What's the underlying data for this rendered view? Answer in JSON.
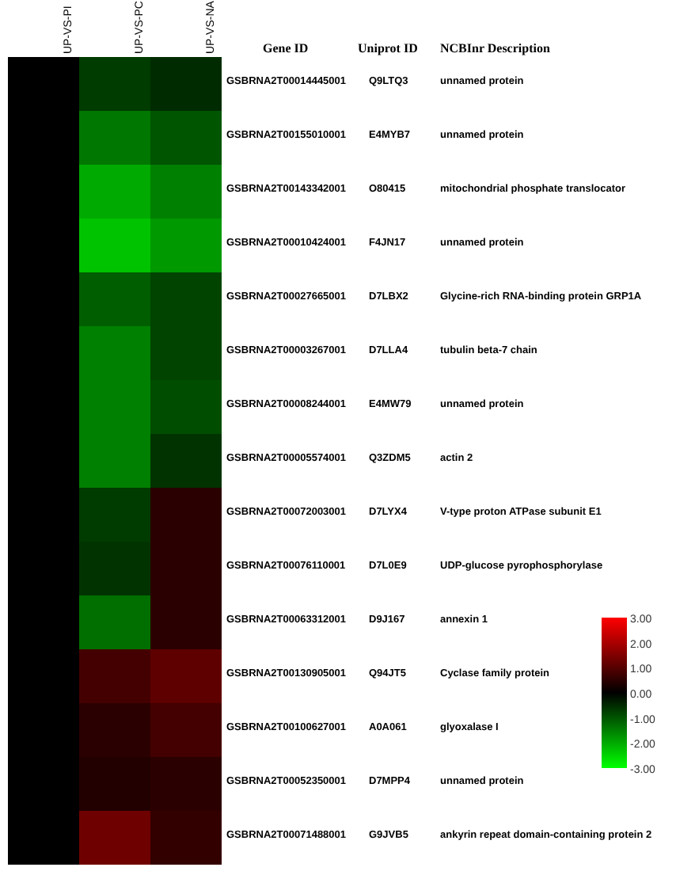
{
  "chart_data": {
    "type": "heatmap",
    "categories": [
      "UP-VS-PI",
      "UP-VS-PC",
      "UP-VS-NA"
    ],
    "y_categories": [
      "GSBRNA2T00014445001",
      "GSBRNA2T00155010001",
      "GSBRNA2T00143342001",
      "GSBRNA2T00010424001",
      "GSBRNA2T00027665001",
      "GSBRNA2T00003267001",
      "GSBRNA2T00008244001",
      "GSBRNA2T00005574001",
      "GSBRNA2T00072003001",
      "GSBRNA2T00076110001",
      "GSBRNA2T00063312001",
      "GSBRNA2T00130905001",
      "GSBRNA2T00100627001",
      "GSBRNA2T00052350001",
      "GSBRNA2T00071488001"
    ],
    "y2_categories": [
      "Q9LTQ3",
      "E4MYB7",
      "O80415",
      "F4JN17",
      "D7LBX2",
      "D7LLA4",
      "E4MW79",
      "Q3ZDM5",
      "D7LYX4",
      "D7L0E9",
      "D9J167",
      "Q94JT5",
      "A0A061",
      "D7MPP4",
      "G9JVB5"
    ],
    "cells": [
      [
        0,
        -0.7,
        -0.5
      ],
      [
        0,
        -1.4,
        -1.0
      ],
      [
        0,
        -2.0,
        -1.5
      ],
      [
        0,
        -2.3,
        -1.8
      ],
      [
        0,
        -1.1,
        -0.8
      ],
      [
        0,
        -1.5,
        -0.8
      ],
      [
        0,
        -1.5,
        -0.9
      ],
      [
        0,
        -1.5,
        -0.6
      ],
      [
        0,
        -0.7,
        0.5
      ],
      [
        0,
        -0.6,
        0.5
      ],
      [
        0,
        -1.3,
        0.5
      ],
      [
        0,
        0.8,
        1.1
      ],
      [
        0,
        0.5,
        0.8
      ],
      [
        0,
        0.4,
        0.5
      ],
      [
        0,
        1.3,
        0.6
      ]
    ],
    "clim": [
      -3,
      3
    ],
    "cticks": [
      {
        "value": 3,
        "label": "3.00"
      },
      {
        "value": 2,
        "label": "2.00"
      },
      {
        "value": 1,
        "label": "1.00"
      },
      {
        "value": 0,
        "label": "0.00"
      },
      {
        "value": -1,
        "label": "-1.00"
      },
      {
        "value": -2,
        "label": "-2.00"
      },
      {
        "value": -3,
        "label": "-3.00"
      }
    ],
    "annotations": [
      "Gene ID",
      "Uniprot ID",
      "NCBInr Description",
      "unnamed protein",
      "unnamed protein",
      "mitochondrial phosphate translocator",
      "unnamed protein",
      "Glycine-rich RNA-binding protein GRP1A",
      "tubulin beta-7 chain",
      "unnamed protein",
      "actin 2",
      "V-type proton ATPase subunit E1",
      "UDP-glucose pyrophosphorylase",
      "annexin 1",
      "Cyclase family protein",
      "glyoxalase I",
      "unnamed protein",
      "ankyrin repeat domain-containing protein 2"
    ]
  }
}
